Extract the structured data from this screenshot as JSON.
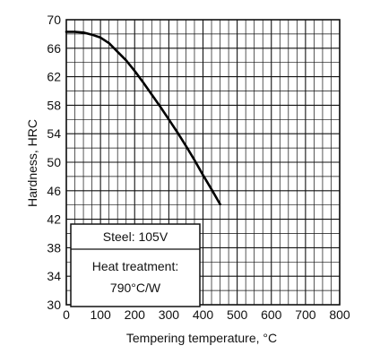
{
  "chart_data": {
    "type": "line",
    "xlabel": "Tempering temperature, °C",
    "ylabel": "Hardness, HRC",
    "xlim": [
      0,
      800
    ],
    "ylim": [
      30,
      70
    ],
    "x_ticks": [
      "0",
      "100",
      "200",
      "300",
      "400",
      "500",
      "600",
      "700",
      "800"
    ],
    "y_ticks": [
      "30",
      "34",
      "38",
      "42",
      "46",
      "50",
      "54",
      "58",
      "62",
      "66",
      "70"
    ],
    "grid": true,
    "series": [
      {
        "x": [
          0,
          25,
          50,
          75,
          100,
          125,
          150,
          175,
          200,
          225,
          250,
          275,
          300,
          325,
          350,
          375,
          400,
          425,
          450
        ],
        "y": [
          68.3,
          68.3,
          68.2,
          67.9,
          67.5,
          66.7,
          65.5,
          64.3,
          62.8,
          61.2,
          59.5,
          57.8,
          56.0,
          54.2,
          52.3,
          50.3,
          48.2,
          46.2,
          44.1
        ],
        "color": "#000000"
      }
    ],
    "annotations": {
      "steel": "Steel: 105V",
      "heat_treatment_line1": "Heat treatment:",
      "heat_treatment_line2": "790°C/W"
    }
  }
}
